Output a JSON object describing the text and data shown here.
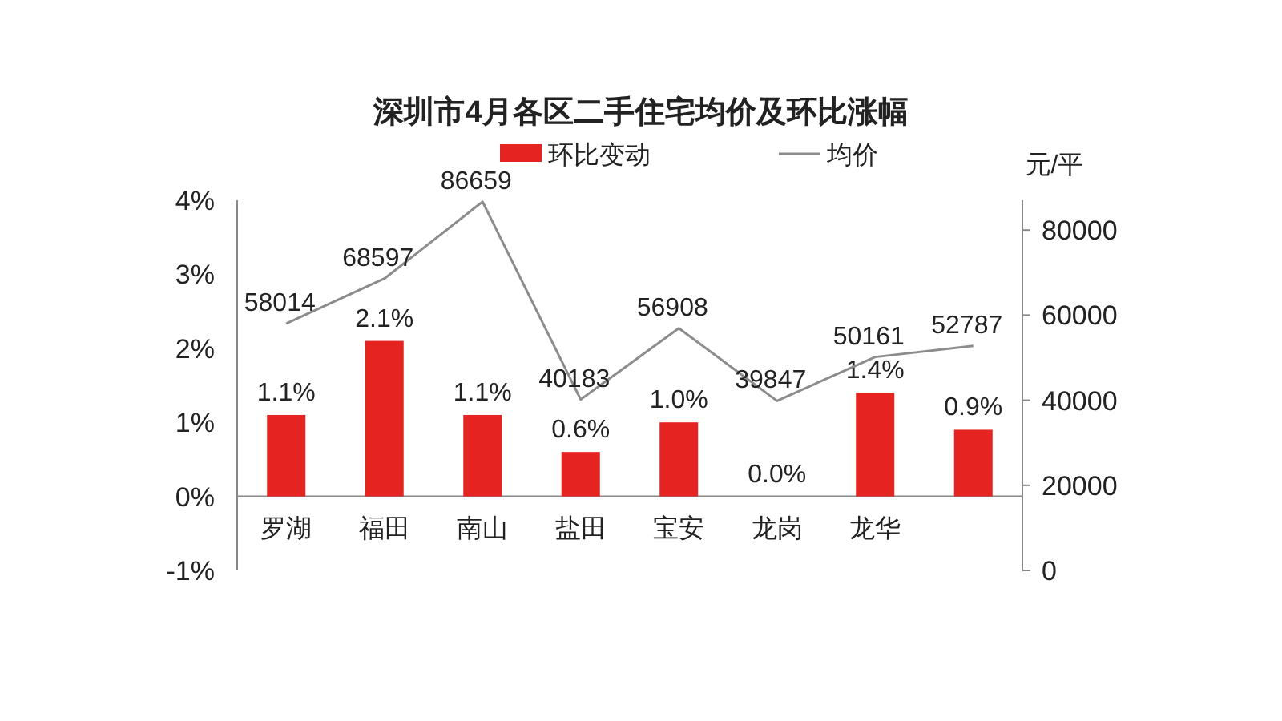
{
  "chart_data": {
    "type": "bar",
    "title": "深圳市4月各区二手住宅均价及环比涨幅",
    "y2label": "元/平",
    "categories": [
      "罗湖",
      "福田",
      "南山",
      "盐田",
      "宝安",
      "龙岗",
      "龙华",
      null
    ],
    "series": [
      {
        "name": "环比变动",
        "color": "#e52421",
        "values": [
          1.1,
          2.1,
          1.1,
          0.6,
          1.0,
          0.0,
          1.4,
          0.9
        ],
        "value_labels": [
          "1.1%",
          "2.1%",
          "1.1%",
          "0.6%",
          "1.0%",
          "0.0%",
          "1.4%",
          "0.9%"
        ]
      },
      {
        "name": "均价",
        "type": "line",
        "axis": "y2",
        "color": "#8c8c8c",
        "values": [
          58014,
          68597,
          86659,
          40183,
          56908,
          39847,
          50161,
          52787
        ],
        "value_labels": [
          "58014",
          "68597",
          "86659",
          "40183",
          "56908",
          "39847",
          "50161",
          "52787"
        ]
      }
    ],
    "ylim": [
      -1,
      4
    ],
    "yticks": [
      {
        "value": -1,
        "label": "-1%"
      },
      {
        "value": 0,
        "label": "0%"
      },
      {
        "value": 1,
        "label": "1%"
      },
      {
        "value": 2,
        "label": "2%"
      },
      {
        "value": 3,
        "label": "3%"
      },
      {
        "value": 4,
        "label": "4%"
      }
    ],
    "y2lim": [
      0,
      87000
    ],
    "y2ticks": [
      0,
      20000,
      40000,
      60000,
      80000
    ],
    "legend": "top",
    "grid": false
  }
}
